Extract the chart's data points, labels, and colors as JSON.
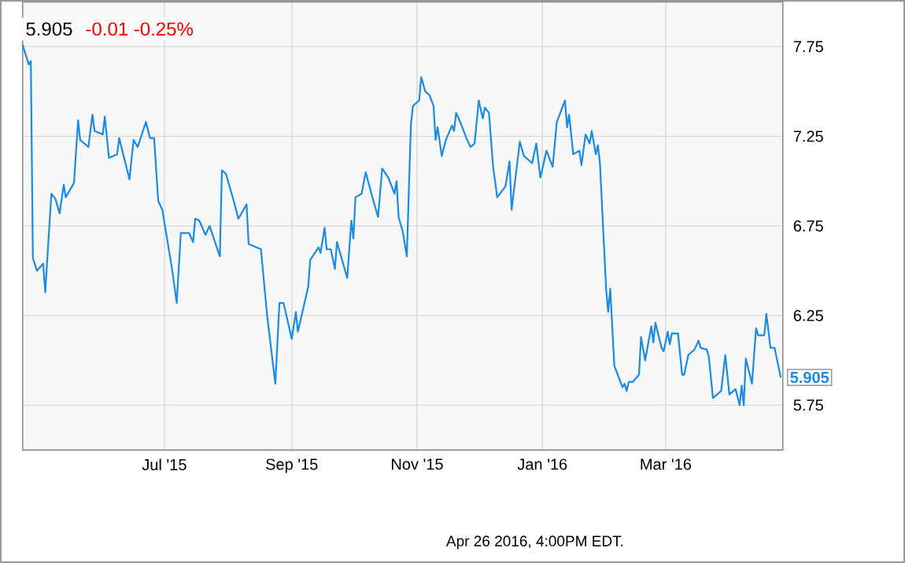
{
  "chart_data": {
    "type": "line",
    "title": "5.905",
    "subtitle": "-0.01  -0.25%",
    "annotations": [
      "Apr 26 2016, 4:00PM EDT."
    ],
    "x": [
      "2015-04-23",
      "2015-04-26",
      "2015-04-27",
      "2015-04-28",
      "2015-04-30",
      "2015-05-03",
      "2015-05-04",
      "2015-05-07",
      "2015-05-09",
      "2015-05-11",
      "2015-05-13",
      "2015-05-14",
      "2015-05-18",
      "2015-05-20",
      "2015-05-21",
      "2015-05-25",
      "2015-05-27",
      "2015-05-28",
      "2015-06-01",
      "2015-06-02",
      "2015-06-04",
      "2015-06-08",
      "2015-06-09",
      "2015-06-14",
      "2015-06-16",
      "2015-06-18",
      "2015-06-22",
      "2015-06-24",
      "2015-06-26",
      "2015-06-28",
      "2015-06-30",
      "2015-07-03",
      "2015-07-05",
      "2015-07-07",
      "2015-07-09",
      "2015-07-13",
      "2015-07-15",
      "2015-07-16",
      "2015-07-18",
      "2015-07-21",
      "2015-07-23",
      "2015-07-28",
      "2015-07-29",
      "2015-07-31",
      "2015-08-04",
      "2015-08-06",
      "2015-08-10",
      "2015-08-11",
      "2015-08-17",
      "2015-08-20",
      "2015-08-24",
      "2015-08-26",
      "2015-08-28",
      "2015-09-01",
      "2015-09-03",
      "2015-09-04",
      "2015-09-09",
      "2015-09-10",
      "2015-09-14",
      "2015-09-15",
      "2015-09-17",
      "2015-09-18",
      "2015-09-20",
      "2015-09-22",
      "2015-09-23",
      "2015-09-28",
      "2015-09-30",
      "2015-10-01",
      "2015-10-02",
      "2015-10-05",
      "2015-10-07",
      "2015-10-10",
      "2015-10-13",
      "2015-10-15",
      "2015-10-18",
      "2015-10-21",
      "2015-10-22",
      "2015-10-23",
      "2015-10-25",
      "2015-10-27",
      "2015-10-29",
      "2015-10-30",
      "2015-11-02",
      "2015-11-03",
      "2015-11-05",
      "2015-11-07",
      "2015-11-09",
      "2015-11-10",
      "2015-11-11",
      "2015-11-13",
      "2015-11-15",
      "2015-11-18",
      "2015-11-19",
      "2015-11-20",
      "2015-11-22",
      "2015-11-25",
      "2015-11-27",
      "2015-11-29",
      "2015-12-01",
      "2015-12-03",
      "2015-12-04",
      "2015-12-06",
      "2015-12-08",
      "2015-12-10",
      "2015-12-14",
      "2015-12-16",
      "2015-12-17",
      "2015-12-21",
      "2015-12-23",
      "2015-12-27",
      "2015-12-29",
      "2015-12-31",
      "2016-01-03",
      "2016-01-06",
      "2016-01-08",
      "2016-01-12",
      "2016-01-13",
      "2016-01-14",
      "2016-01-16",
      "2016-01-19",
      "2016-01-20",
      "2016-01-22",
      "2016-01-24",
      "2016-01-25",
      "2016-01-27",
      "2016-01-28",
      "2016-01-29",
      "2016-02-01",
      "2016-02-02",
      "2016-02-03",
      "2016-02-05",
      "2016-02-09",
      "2016-02-10",
      "2016-02-11",
      "2016-02-12",
      "2016-02-14",
      "2016-02-17",
      "2016-02-18",
      "2016-02-20",
      "2016-02-23",
      "2016-02-24",
      "2016-02-25",
      "2016-02-28",
      "2016-02-29",
      "2016-03-02",
      "2016-03-03",
      "2016-03-04",
      "2016-03-07",
      "2016-03-09",
      "2016-03-10",
      "2016-03-12",
      "2016-03-15",
      "2016-03-17",
      "2016-03-18",
      "2016-03-21",
      "2016-03-22",
      "2016-03-24",
      "2016-03-28",
      "2016-03-30",
      "2016-04-01",
      "2016-04-04",
      "2016-04-06",
      "2016-04-07",
      "2016-04-08",
      "2016-04-09",
      "2016-04-12",
      "2016-04-14",
      "2016-04-15",
      "2016-04-18",
      "2016-04-19",
      "2016-04-21",
      "2016-04-23",
      "2016-04-26"
    ],
    "values": [
      7.76,
      7.65,
      7.67,
      6.57,
      6.5,
      6.54,
      6.38,
      6.93,
      6.9,
      6.82,
      6.98,
      6.91,
      6.99,
      7.34,
      7.23,
      7.19,
      7.37,
      7.28,
      7.26,
      7.36,
      7.13,
      7.15,
      7.24,
      7.01,
      7.23,
      7.19,
      7.33,
      7.24,
      7.24,
      6.89,
      6.84,
      6.63,
      6.49,
      6.32,
      6.71,
      6.71,
      6.66,
      6.79,
      6.78,
      6.7,
      6.75,
      6.58,
      7.06,
      7.04,
      6.88,
      6.79,
      6.87,
      6.65,
      6.62,
      6.25,
      5.87,
      6.32,
      6.32,
      6.12,
      6.27,
      6.16,
      6.41,
      6.56,
      6.63,
      6.6,
      6.74,
      6.62,
      6.62,
      6.51,
      6.66,
      6.46,
      6.78,
      6.68,
      6.91,
      6.93,
      7.05,
      6.92,
      6.8,
      7.07,
      7.02,
      6.93,
      7.0,
      6.8,
      6.72,
      6.58,
      7.32,
      7.42,
      7.45,
      7.58,
      7.5,
      7.48,
      7.42,
      7.23,
      7.3,
      7.14,
      7.23,
      7.31,
      7.28,
      7.38,
      7.33,
      7.24,
      7.19,
      7.21,
      7.45,
      7.35,
      7.41,
      7.38,
      7.08,
      6.91,
      6.97,
      7.11,
      6.84,
      7.22,
      7.14,
      7.1,
      7.21,
      7.02,
      7.17,
      7.08,
      7.33,
      7.45,
      7.3,
      7.37,
      7.15,
      7.17,
      7.09,
      7.26,
      7.21,
      7.28,
      7.15,
      7.2,
      7.1,
      6.4,
      6.27,
      6.4,
      5.97,
      5.85,
      5.87,
      5.83,
      5.88,
      5.88,
      5.92,
      6.13,
      6.0,
      6.19,
      6.1,
      6.21,
      6.07,
      6.05,
      6.16,
      6.09,
      6.15,
      6.15,
      5.92,
      5.92,
      6.03,
      6.06,
      6.11,
      6.07,
      6.06,
      6.02,
      5.79,
      5.83,
      6.03,
      5.81,
      5.84,
      5.75,
      5.86,
      5.75,
      6.01,
      5.87,
      6.18,
      6.14,
      6.14,
      6.26,
      6.07,
      6.07,
      5.905
    ],
    "value_labels": [
      null,
      null,
      null,
      null,
      null,
      null,
      null,
      null,
      null,
      null,
      null,
      null,
      null,
      null,
      null,
      null,
      null,
      null,
      null,
      null,
      null,
      null,
      null,
      null,
      null,
      null,
      null,
      null,
      null,
      null,
      null,
      null,
      null,
      null,
      null,
      null,
      null,
      null,
      null,
      null,
      null,
      null,
      null,
      null,
      null,
      null,
      null,
      null,
      null,
      null,
      null,
      null,
      null,
      null,
      null,
      null,
      null,
      null,
      null,
      null,
      null,
      null,
      null,
      null,
      null,
      null,
      null,
      null,
      null,
      null,
      null,
      null,
      null,
      null,
      null,
      null,
      null,
      null,
      null,
      null,
      null,
      null,
      null,
      null,
      null,
      null,
      null,
      null,
      null,
      null,
      null,
      null,
      null,
      null,
      null,
      null,
      null,
      null,
      null,
      null,
      null,
      null,
      null,
      null,
      null,
      null,
      null,
      null,
      null,
      null,
      null,
      null,
      null,
      null,
      null,
      null,
      null,
      null,
      null,
      null,
      null,
      null,
      null,
      null,
      null,
      null,
      null,
      null,
      null,
      null,
      null,
      null,
      null,
      null,
      null,
      null,
      null,
      null,
      null,
      null,
      null,
      null,
      null,
      null,
      null,
      null,
      null,
      null,
      null,
      null,
      null,
      null,
      null,
      null,
      null,
      null,
      null,
      null,
      null,
      null,
      null,
      null,
      null,
      null,
      null,
      null,
      null,
      null,
      null,
      null,
      null,
      null,
      "5.905"
    ],
    "color": "#1a8be6",
    "marker": "none",
    "line_style": "solid",
    "grid": true,
    "xlim": [
      "2015-04-23",
      "2016-04-27"
    ],
    "ylim": [
      5.5,
      8.0
    ],
    "xticks": [
      {
        "value": "2015-07-01",
        "label": "Jul '15"
      },
      {
        "value": "2015-09-01",
        "label": "Sep '15"
      },
      {
        "value": "2015-11-01",
        "label": "Nov '15"
      },
      {
        "value": "2016-01-01",
        "label": "Jan '16"
      },
      {
        "value": "2016-03-01",
        "label": "Mar '16"
      }
    ],
    "yticks": [
      5.75,
      6.25,
      6.75,
      7.25,
      7.75
    ]
  }
}
